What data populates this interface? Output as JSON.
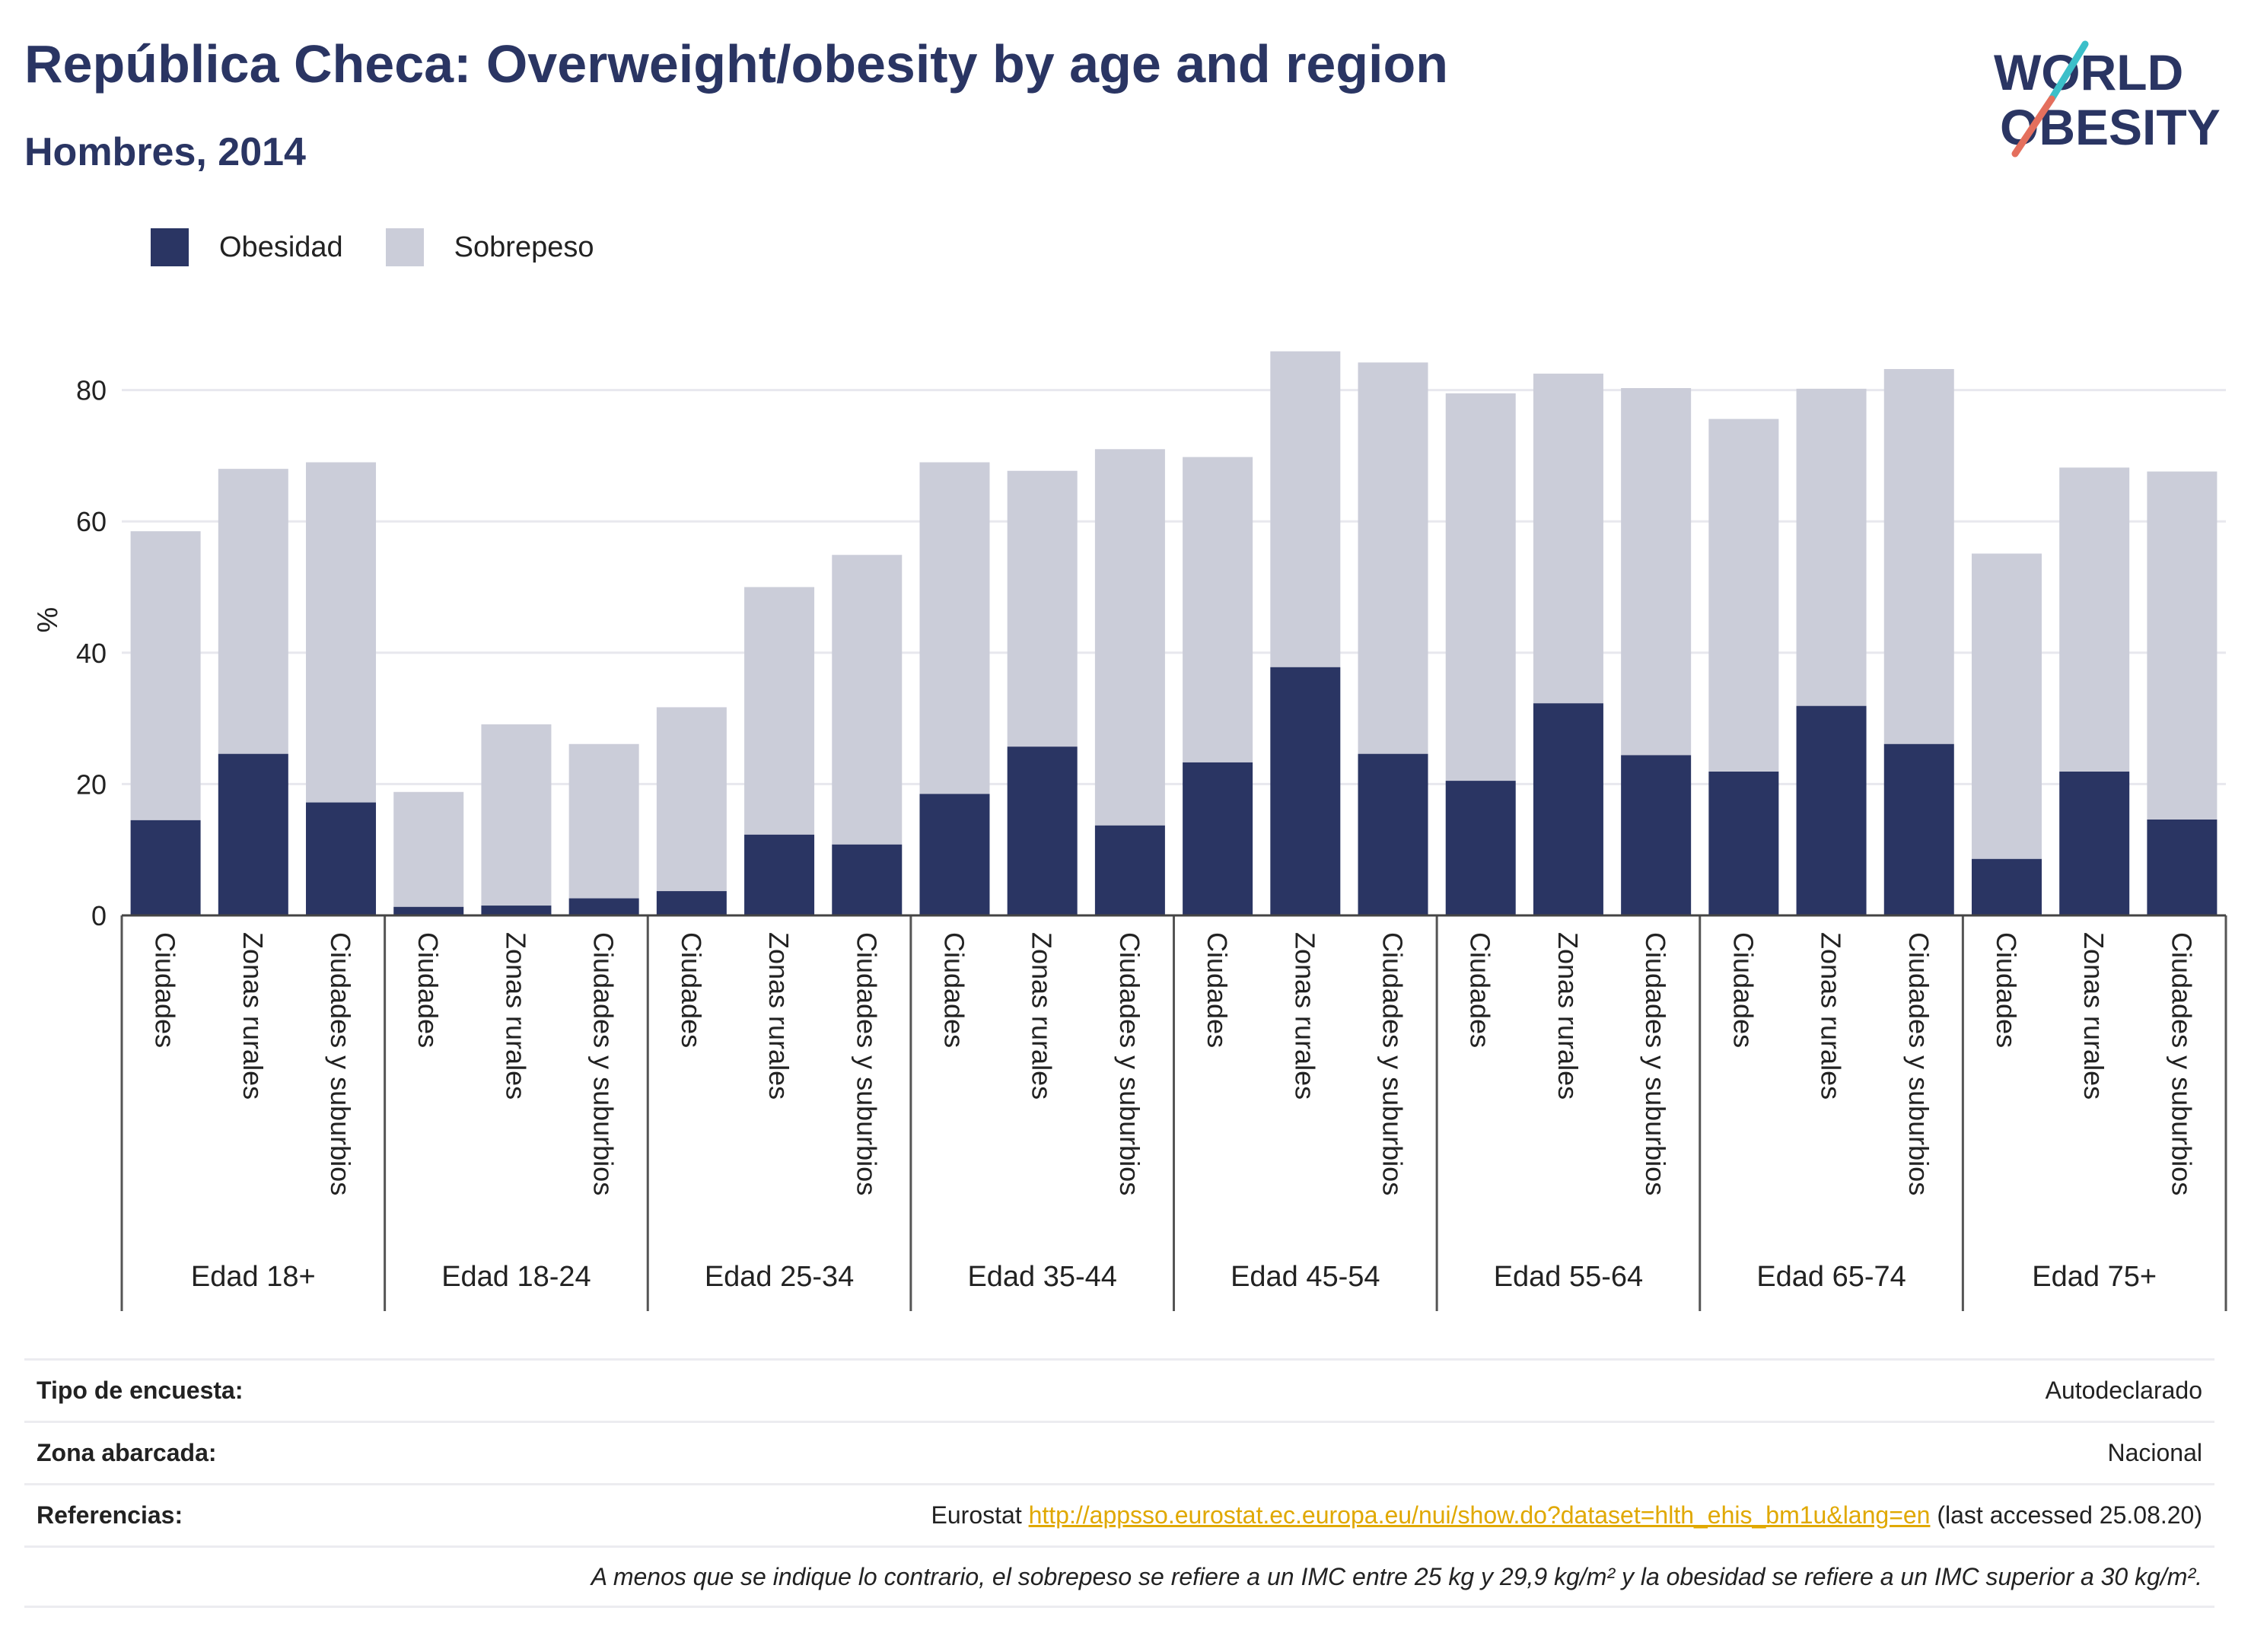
{
  "header": {
    "title": "República Checa: Overweight/obesity by age and region",
    "subtitle": "Hombres, 2014",
    "logo_line1": "WORLD",
    "logo_line2": "OBESITY"
  },
  "colors": {
    "obesity": "#2a3563",
    "overweight": "#cbcdd9",
    "axis_text": "#222222",
    "grid": "#e8e8ee",
    "logo_text": "#2a3563",
    "logo_teal": "#3cbfc9",
    "logo_coral": "#e46f5d",
    "link": "#e0a800"
  },
  "chart_data": {
    "type": "bar",
    "stacked": true,
    "ylabel": "%",
    "ylim": [
      0,
      90
    ],
    "yticks": [
      0,
      20,
      40,
      60,
      80
    ],
    "grid": true,
    "legend_position": "top-left",
    "series_names": [
      "Obesidad",
      "Sobrepeso"
    ],
    "groups": [
      {
        "label": "Edad 18+",
        "bars": [
          {
            "category": "Ciudades",
            "obesidad": 14.5,
            "total": 58.5
          },
          {
            "category": "Zonas rurales",
            "obesidad": 24.6,
            "total": 68.0
          },
          {
            "category": "Ciudades y suburbios",
            "obesidad": 17.2,
            "total": 69.0
          }
        ]
      },
      {
        "label": "Edad 18-24",
        "bars": [
          {
            "category": "Ciudades",
            "obesidad": 1.3,
            "total": 18.8
          },
          {
            "category": "Zonas rurales",
            "obesidad": 1.5,
            "total": 29.1
          },
          {
            "category": "Ciudades y suburbios",
            "obesidad": 2.6,
            "total": 26.1
          }
        ]
      },
      {
        "label": "Edad 25-34",
        "bars": [
          {
            "category": "Ciudades",
            "obesidad": 3.7,
            "total": 31.7
          },
          {
            "category": "Zonas rurales",
            "obesidad": 12.3,
            "total": 50.0
          },
          {
            "category": "Ciudades y suburbios",
            "obesidad": 10.8,
            "total": 54.9
          }
        ]
      },
      {
        "label": "Edad 35-44",
        "bars": [
          {
            "category": "Ciudades",
            "obesidad": 18.5,
            "total": 69.0
          },
          {
            "category": "Zonas rurales",
            "obesidad": 25.7,
            "total": 67.7
          },
          {
            "category": "Ciudades y suburbios",
            "obesidad": 13.7,
            "total": 71.0
          }
        ]
      },
      {
        "label": "Edad 45-54",
        "bars": [
          {
            "category": "Ciudades",
            "obesidad": 23.3,
            "total": 69.8
          },
          {
            "category": "Zonas rurales",
            "obesidad": 37.8,
            "total": 85.9
          },
          {
            "category": "Ciudades y suburbios",
            "obesidad": 24.6,
            "total": 84.2
          }
        ]
      },
      {
        "label": "Edad 55-64",
        "bars": [
          {
            "category": "Ciudades",
            "obesidad": 20.5,
            "total": 79.5
          },
          {
            "category": "Zonas rurales",
            "obesidad": 32.3,
            "total": 82.5
          },
          {
            "category": "Ciudades y suburbios",
            "obesidad": 24.4,
            "total": 80.3
          }
        ]
      },
      {
        "label": "Edad 65-74",
        "bars": [
          {
            "category": "Ciudades",
            "obesidad": 21.9,
            "total": 75.6
          },
          {
            "category": "Zonas rurales",
            "obesidad": 31.9,
            "total": 80.2
          },
          {
            "category": "Ciudades y suburbios",
            "obesidad": 26.1,
            "total": 83.2
          }
        ]
      },
      {
        "label": "Edad 75+",
        "bars": [
          {
            "category": "Ciudades",
            "obesidad": 8.6,
            "total": 55.1
          },
          {
            "category": "Zonas rurales",
            "obesidad": 21.9,
            "total": 68.2
          },
          {
            "category": "Ciudades y suburbios",
            "obesidad": 14.6,
            "total": 67.6
          }
        ]
      }
    ]
  },
  "info": {
    "survey_label": "Tipo de encuesta:",
    "survey_value": "Autodeclarado",
    "area_label": "Zona abarcada:",
    "area_value": "Nacional",
    "refs_label": "Referencias:",
    "refs_source": "Eurostat",
    "refs_url": "http://appsso.eurostat.ec.europa.eu/nui/show.do?dataset=hlth_ehis_bm1u&lang=en",
    "refs_accessed": "(last accessed 25.08.20)",
    "note": "A menos que se indique lo contrario, el sobrepeso se refiere a un IMC entre 25 kg y 29,9 kg/m² y la obesidad se refiere a un IMC superior a 30 kg/m²."
  }
}
